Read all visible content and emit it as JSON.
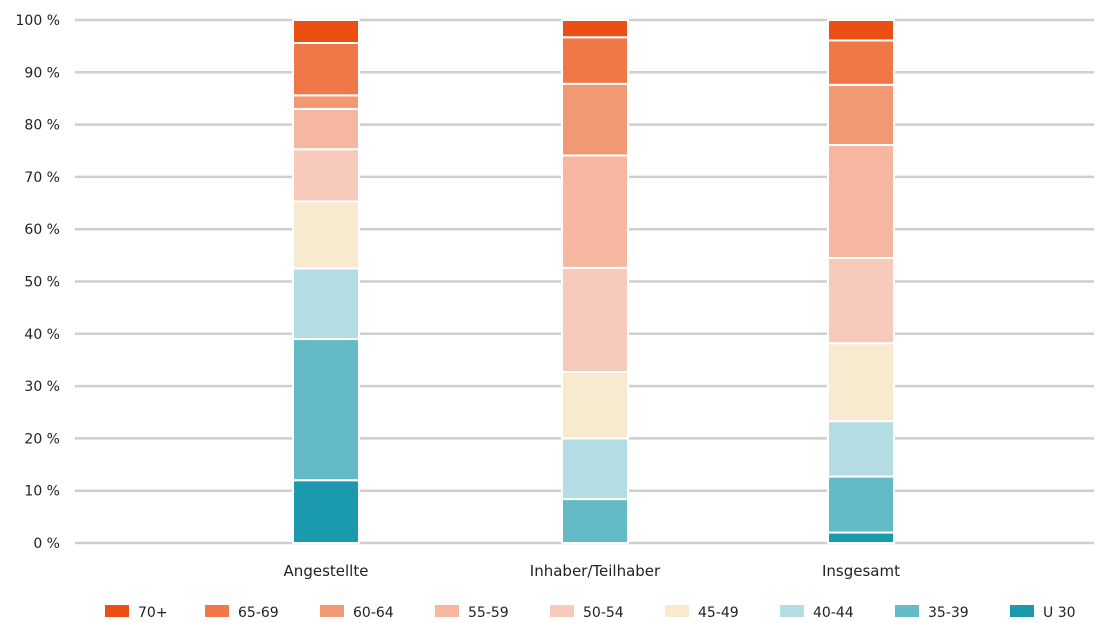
{
  "chart_data": {
    "type": "bar",
    "stacked": true,
    "categories": [
      "Angestellte",
      "Inhaber/Teilhaber",
      "Insgesamt"
    ],
    "ylim": [
      0,
      100
    ],
    "yticks": [
      0,
      10,
      20,
      30,
      40,
      50,
      60,
      70,
      80,
      90,
      100
    ],
    "ytick_labels": [
      "0 %",
      "10 %",
      "20 %",
      "30 %",
      "40 %",
      "50 %",
      "60 %",
      "70 %",
      "80 %",
      "90 %",
      "100 %"
    ],
    "grid": true,
    "legend_position": "bottom",
    "series": [
      {
        "name": "U 30",
        "color": "#1c9aad",
        "values": [
          12,
          0,
          2
        ]
      },
      {
        "name": "35-39",
        "color": "#64bac6",
        "values": [
          27,
          8.4,
          10.7
        ]
      },
      {
        "name": "40-44",
        "color": "#b3dde3",
        "values": [
          13.5,
          11.6,
          10.6
        ]
      },
      {
        "name": "45-49",
        "color": "#f7eacf",
        "values": [
          12.8,
          12.7,
          14.9
        ]
      },
      {
        "name": "50-54",
        "color": "#f7cabb",
        "values": [
          10,
          19.9,
          16.3
        ]
      },
      {
        "name": "55-59",
        "color": "#f6b6a0",
        "values": [
          7.7,
          21.5,
          21.6
        ]
      },
      {
        "name": "60-64",
        "color": "#f19973",
        "values": [
          2.6,
          13.7,
          11.5
        ]
      },
      {
        "name": "65-69",
        "color": "#f07747",
        "values": [
          10,
          8.9,
          8.5
        ]
      },
      {
        "name": "70+",
        "color": "#ec4f14",
        "values": [
          4.4,
          3.3,
          3.9
        ]
      }
    ],
    "legend_order": [
      "70+",
      "65-69",
      "60-64",
      "55-59",
      "50-54",
      "45-49",
      "40-44",
      "35-39",
      "U 30"
    ]
  }
}
